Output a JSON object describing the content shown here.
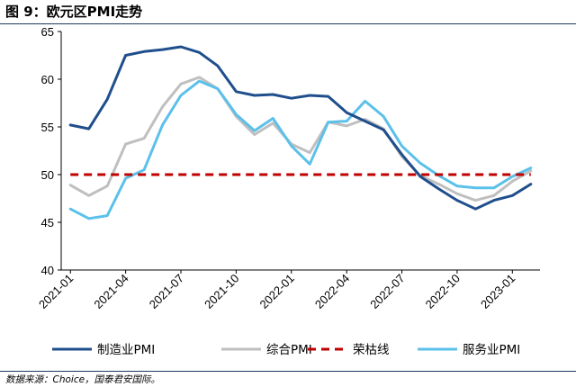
{
  "header": {
    "title": "图 9：欧元区PMI走势"
  },
  "footer": {
    "source": "数据来源：Choice，国泰君安国际。"
  },
  "chart_data": {
    "type": "line",
    "title": "图 9：欧元区PMI走势",
    "x": [
      "2021-01",
      "2021-02",
      "2021-03",
      "2021-04",
      "2021-05",
      "2021-06",
      "2021-07",
      "2021-08",
      "2021-09",
      "2021-10",
      "2021-11",
      "2021-12",
      "2022-01",
      "2022-02",
      "2022-03",
      "2022-04",
      "2022-05",
      "2022-06",
      "2022-07",
      "2022-08",
      "2022-09",
      "2022-10",
      "2022-11",
      "2022-12",
      "2023-01",
      "2023-02"
    ],
    "xticks": [
      "2021-01",
      "2021-04",
      "2021-07",
      "2021-10",
      "2022-01",
      "2022-04",
      "2022-07",
      "2022-10",
      "2023-01"
    ],
    "ylim": [
      40,
      65
    ],
    "yticks": [
      "40",
      "45",
      "50",
      "55",
      "60",
      "65"
    ],
    "grid": false,
    "legend_position": "bottom",
    "series": [
      {
        "name": "制造业PMI",
        "color": "#1f4e8c",
        "style": "solid",
        "values": [
          55.2,
          54.8,
          57.9,
          62.5,
          62.9,
          63.1,
          63.4,
          62.8,
          61.4,
          58.7,
          58.3,
          58.4,
          58.0,
          58.3,
          58.2,
          56.5,
          55.6,
          54.7,
          52.1,
          49.8,
          48.5,
          47.3,
          46.4,
          47.3,
          47.8,
          49.0
        ]
      },
      {
        "name": "综合PMI",
        "color": "#bfbfbf",
        "style": "solid",
        "values": [
          48.9,
          47.8,
          48.8,
          53.2,
          53.8,
          57.1,
          59.5,
          60.2,
          59.0,
          56.1,
          54.2,
          55.4,
          53.2,
          52.3,
          55.5,
          55.1,
          55.8,
          54.8,
          51.9,
          49.9,
          49.0,
          48.0,
          47.3,
          47.8,
          49.3,
          50.4
        ]
      },
      {
        "name": "荣枯线",
        "color": "#c00000",
        "style": "dashed",
        "values": [
          50,
          50,
          50,
          50,
          50,
          50,
          50,
          50,
          50,
          50,
          50,
          50,
          50,
          50,
          50,
          50,
          50,
          50,
          50,
          50,
          50,
          50,
          50,
          50,
          50,
          50
        ]
      },
      {
        "name": "服务业PMI",
        "color": "#5bc0ea",
        "style": "solid",
        "values": [
          46.4,
          45.4,
          45.7,
          49.6,
          50.5,
          55.2,
          58.3,
          59.8,
          59.0,
          56.3,
          54.6,
          55.9,
          53.0,
          51.1,
          55.5,
          55.6,
          57.7,
          56.1,
          53.0,
          51.2,
          49.9,
          48.8,
          48.6,
          48.6,
          49.8,
          50.7
        ]
      }
    ]
  }
}
